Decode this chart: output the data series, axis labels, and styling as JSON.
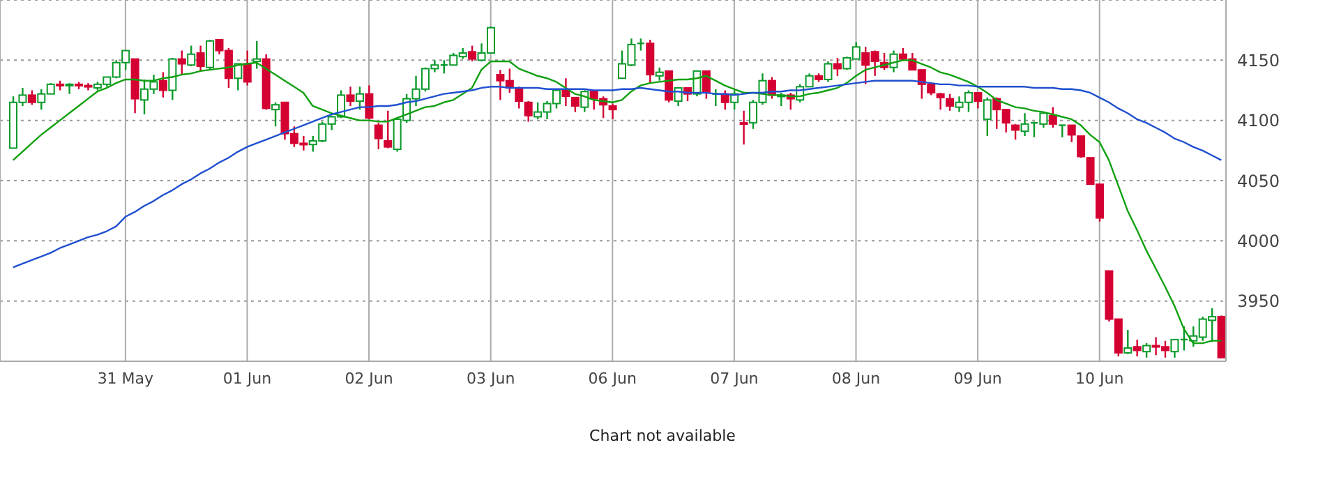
{
  "chart_data": {
    "type": "candlestick",
    "categories": [
      null,
      null,
      null,
      null,
      null,
      null,
      null,
      null,
      null,
      null,
      null,
      null,
      "31 May",
      null,
      null,
      null,
      null,
      null,
      null,
      null,
      null,
      null,
      null,
      null,
      null,
      "01 Jun",
      null,
      null,
      null,
      null,
      null,
      null,
      null,
      null,
      null,
      null,
      null,
      null,
      "02 Jun",
      null,
      null,
      null,
      null,
      null,
      null,
      null,
      null,
      null,
      null,
      null,
      null,
      "03 Jun",
      null,
      null,
      null,
      null,
      null,
      null,
      null,
      null,
      null,
      null,
      null,
      null,
      "06 Jun",
      null,
      null,
      null,
      null,
      null,
      null,
      null,
      null,
      null,
      null,
      null,
      null,
      "07 Jun",
      null,
      null,
      null,
      null,
      null,
      null,
      null,
      null,
      null,
      null,
      null,
      null,
      "08 Jun",
      null,
      null,
      null,
      null,
      null,
      null,
      null,
      null,
      null,
      null,
      null,
      null,
      "09 Jun",
      null,
      null,
      null,
      null,
      null,
      null,
      null,
      null,
      null,
      null,
      null,
      null,
      "10 Jun",
      null,
      null,
      null,
      null,
      null,
      null,
      null,
      null,
      null,
      null,
      null,
      null,
      null
    ],
    "ohlc": [
      [
        4077,
        4120,
        4077,
        4115
      ],
      [
        4115,
        4127,
        4112,
        4121
      ],
      [
        4121,
        4125,
        4113,
        4115
      ],
      [
        4115,
        4126,
        4109,
        4122
      ],
      [
        4122,
        4131,
        4122,
        4130
      ],
      [
        4130,
        4133,
        4125,
        4129
      ],
      [
        4129,
        4131,
        4122,
        4130
      ],
      [
        4130,
        4132,
        4126,
        4129
      ],
      [
        4129,
        4131,
        4125,
        4128
      ],
      [
        4127,
        4132,
        4125,
        4130
      ],
      [
        4130,
        4136,
        4128,
        4136
      ],
      [
        4136,
        4150,
        4135,
        4148
      ],
      [
        4148,
        4158,
        4142,
        4158
      ],
      [
        4151,
        4151,
        4106,
        4118
      ],
      [
        4117,
        4134,
        4105,
        4126
      ],
      [
        4126,
        4138,
        4122,
        4132
      ],
      [
        4133,
        4140,
        4119,
        4125
      ],
      [
        4125,
        4152,
        4117,
        4151
      ],
      [
        4151,
        4158,
        4138,
        4147
      ],
      [
        4146,
        4162,
        4145,
        4155
      ],
      [
        4156,
        4162,
        4141,
        4145
      ],
      [
        4144,
        4167,
        4142,
        4166
      ],
      [
        4167,
        4167,
        4155,
        4158
      ],
      [
        4158,
        4160,
        4127,
        4135
      ],
      [
        4135,
        4147,
        4125,
        4147
      ],
      [
        4147,
        4158,
        4129,
        4132
      ],
      [
        4149,
        4166,
        4143,
        4151
      ],
      [
        4151,
        4155,
        4109,
        4110
      ],
      [
        4109,
        4115,
        4095,
        4113
      ],
      [
        4115,
        4115,
        4084,
        4089
      ],
      [
        4089,
        4095,
        4078,
        4081
      ],
      [
        4081,
        4087,
        4075,
        4080
      ],
      [
        4080,
        4087,
        4074,
        4083
      ],
      [
        4083,
        4099,
        4082,
        4097
      ],
      [
        4097,
        4104,
        4092,
        4103
      ],
      [
        4103,
        4125,
        4102,
        4121
      ],
      [
        4121,
        4128,
        4112,
        4116
      ],
      [
        4116,
        4128,
        4109,
        4122
      ],
      [
        4122,
        4129,
        4101,
        4102
      ],
      [
        4096,
        4098,
        4076,
        4085
      ],
      [
        4083,
        4108,
        4077,
        4078
      ],
      [
        4076,
        4102,
        4074,
        4101
      ],
      [
        4100,
        4122,
        4098,
        4118
      ],
      [
        4118,
        4137,
        4112,
        4126
      ],
      [
        4126,
        4144,
        4124,
        4143
      ],
      [
        4143,
        4150,
        4140,
        4146
      ],
      [
        4146,
        4150,
        4139,
        4146
      ],
      [
        4146,
        4156,
        4146,
        4154
      ],
      [
        4153,
        4160,
        4151,
        4156
      ],
      [
        4157,
        4162,
        4149,
        4151
      ],
      [
        4150,
        4164,
        4149,
        4156
      ],
      [
        4156,
        4178,
        4156,
        4177
      ],
      [
        4138,
        4142,
        4117,
        4133
      ],
      [
        4133,
        4143,
        4123,
        4127
      ],
      [
        4126,
        4128,
        4110,
        4116
      ],
      [
        4115,
        4116,
        4099,
        4104
      ],
      [
        4103,
        4115,
        4101,
        4107
      ],
      [
        4107,
        4116,
        4101,
        4114
      ],
      [
        4114,
        4126,
        4110,
        4125
      ],
      [
        4125,
        4135,
        4112,
        4120
      ],
      [
        4119,
        4119,
        4107,
        4112
      ],
      [
        4111,
        4125,
        4107,
        4124
      ],
      [
        4124,
        4125,
        4109,
        4118
      ],
      [
        4118,
        4120,
        4102,
        4113
      ],
      [
        4112,
        4114,
        4101,
        4109
      ],
      [
        4135,
        4158,
        4135,
        4147
      ],
      [
        4146,
        4168,
        4145,
        4163
      ],
      [
        4164,
        4168,
        4158,
        4164
      ],
      [
        4164,
        4167,
        4131,
        4138
      ],
      [
        4137,
        4144,
        4133,
        4140
      ],
      [
        4141,
        4141,
        4115,
        4117
      ],
      [
        4116,
        4127,
        4112,
        4127
      ],
      [
        4127,
        4127,
        4116,
        4122
      ],
      [
        4122,
        4141,
        4120,
        4141
      ],
      [
        4141,
        4141,
        4118,
        4123
      ],
      [
        4122,
        4126,
        4112,
        4122
      ],
      [
        4122,
        4125,
        4109,
        4115
      ],
      [
        4115,
        4125,
        4109,
        4122
      ],
      [
        4098,
        4108,
        4080,
        4097
      ],
      [
        4098,
        4117,
        4093,
        4115
      ],
      [
        4115,
        4139,
        4113,
        4133
      ],
      [
        4133,
        4136,
        4118,
        4121
      ],
      [
        4120,
        4123,
        4112,
        4121
      ],
      [
        4121,
        4123,
        4109,
        4118
      ],
      [
        4117,
        4130,
        4115,
        4128
      ],
      [
        4128,
        4139,
        4128,
        4137
      ],
      [
        4137,
        4139,
        4132,
        4134
      ],
      [
        4134,
        4149,
        4132,
        4147
      ],
      [
        4147,
        4152,
        4137,
        4143
      ],
      [
        4143,
        4153,
        4142,
        4152
      ],
      [
        4151,
        4165,
        4151,
        4161
      ],
      [
        4156,
        4161,
        4130,
        4146
      ],
      [
        4157,
        4158,
        4137,
        4149
      ],
      [
        4148,
        4156,
        4142,
        4144
      ],
      [
        4144,
        4158,
        4140,
        4155
      ],
      [
        4155,
        4160,
        4150,
        4151
      ],
      [
        4151,
        4156,
        4142,
        4142
      ],
      [
        4142,
        4142,
        4118,
        4130
      ],
      [
        4130,
        4130,
        4121,
        4123
      ],
      [
        4122,
        4123,
        4109,
        4119
      ],
      [
        4118,
        4122,
        4108,
        4112
      ],
      [
        4111,
        4120,
        4107,
        4115
      ],
      [
        4115,
        4125,
        4107,
        4123
      ],
      [
        4123,
        4123,
        4110,
        4116
      ],
      [
        4101,
        4119,
        4087,
        4117
      ],
      [
        4118,
        4119,
        4093,
        4109
      ],
      [
        4109,
        4109,
        4090,
        4098
      ],
      [
        4096,
        4097,
        4084,
        4092
      ],
      [
        4091,
        4106,
        4087,
        4097
      ],
      [
        4098,
        4099,
        4086,
        4098
      ],
      [
        4097,
        4107,
        4094,
        4106
      ],
      [
        4104,
        4111,
        4094,
        4097
      ],
      [
        4096,
        4096,
        4086,
        4096
      ],
      [
        4096,
        4096,
        4082,
        4088
      ],
      [
        4087,
        4087,
        4069,
        4070
      ],
      [
        4069,
        4069,
        4047,
        4047
      ],
      [
        4047,
        4047,
        4016,
        4019
      ],
      [
        3975,
        3975,
        3933,
        3935
      ],
      [
        3935,
        3935,
        3904,
        3907
      ],
      [
        3907,
        3926,
        3906,
        3911
      ],
      [
        3912,
        3918,
        3904,
        3909
      ],
      [
        3908,
        3915,
        3903,
        3913
      ],
      [
        3913,
        3920,
        3905,
        3912
      ],
      [
        3912,
        3917,
        3903,
        3909
      ],
      [
        3908,
        3918,
        3903,
        3918
      ],
      [
        3918,
        3929,
        3909,
        3918
      ],
      [
        3917,
        3929,
        3912,
        3921
      ],
      [
        3920,
        3937,
        3917,
        3935
      ],
      [
        3934,
        3944,
        3916,
        3937
      ],
      [
        3937,
        3938,
        3903,
        3903
      ]
    ],
    "colors": [
      "#0a9a2a",
      "#0a9a2a",
      "#d40032",
      "#0a9a2a",
      "#0a9a2a",
      "#d40032",
      "#0a9a2a",
      "#d40032",
      "#d40032",
      "#0a9a2a",
      "#0a9a2a",
      "#0a9a2a",
      "#0a9a2a",
      "#d40032",
      "#0a9a2a",
      "#0a9a2a",
      "#d40032",
      "#0a9a2a",
      "#d40032",
      "#0a9a2a",
      "#d40032",
      "#0a9a2a",
      "#d40032",
      "#d40032",
      "#0a9a2a",
      "#d40032",
      "#0a9a2a",
      "#d40032",
      "#0a9a2a",
      "#d40032",
      "#d40032",
      "#d40032",
      "#0a9a2a",
      "#0a9a2a",
      "#0a9a2a",
      "#0a9a2a",
      "#d40032",
      "#0a9a2a",
      "#d40032",
      "#d40032",
      "#d40032",
      "#0a9a2a",
      "#0a9a2a",
      "#0a9a2a",
      "#0a9a2a",
      "#0a9a2a",
      "#0a9a2a",
      "#0a9a2a",
      "#0a9a2a",
      "#d40032",
      "#0a9a2a",
      "#0a9a2a",
      "#d40032",
      "#d40032",
      "#d40032",
      "#d40032",
      "#0a9a2a",
      "#0a9a2a",
      "#0a9a2a",
      "#d40032",
      "#d40032",
      "#0a9a2a",
      "#d40032",
      "#d40032",
      "#d40032",
      "#0a9a2a",
      "#0a9a2a",
      "#0a9a2a",
      "#d40032",
      "#0a9a2a",
      "#d40032",
      "#0a9a2a",
      "#d40032",
      "#0a9a2a",
      "#d40032",
      "#0a9a2a",
      "#d40032",
      "#0a9a2a",
      "#d40032",
      "#0a9a2a",
      "#0a9a2a",
      "#d40032",
      "#0a9a2a",
      "#d40032",
      "#0a9a2a",
      "#0a9a2a",
      "#d40032",
      "#0a9a2a",
      "#d40032",
      "#0a9a2a",
      "#0a9a2a",
      "#d40032",
      "#d40032",
      "#d40032",
      "#0a9a2a",
      "#d40032",
      "#d40032",
      "#d40032",
      "#d40032",
      "#d40032",
      "#d40032",
      "#0a9a2a",
      "#0a9a2a",
      "#d40032",
      "#0a9a2a",
      "#d40032",
      "#d40032",
      "#d40032",
      "#0a9a2a",
      "#0a9a2a",
      "#0a9a2a",
      "#d40032",
      "#0a9a2a",
      "#d40032",
      "#d40032",
      "#d40032",
      "#d40032",
      "#d40032",
      "#d40032",
      "#0a9a2a",
      "#d40032",
      "#0a9a2a",
      "#d40032",
      "#d40032",
      "#0a9a2a",
      "#0a9a2a",
      "#0a9a2a",
      "#0a9a2a",
      "#0a9a2a",
      "#d40032"
    ],
    "series": [
      {
        "type": "line",
        "color": "#10a010",
        "values": [
          4067,
          4074,
          4081,
          4088,
          4094,
          4100,
          4106,
          4112,
          4118,
          4124,
          4127,
          4131,
          4134,
          4134,
          4133,
          4133,
          4135,
          4136,
          4138,
          4139,
          4141,
          4142,
          4143,
          4144,
          4146,
          4147,
          4148,
          4143,
          4138,
          4133,
          4128,
          4123,
          4112,
          4109,
          4106,
          4104,
          4102,
          4100,
          4100,
          4099,
          4099,
          4102,
          4105,
          4108,
          4111,
          4112,
          4115,
          4117,
          4122,
          4127,
          4142,
          4149,
          4149,
          4149,
          4143,
          4140,
          4137,
          4135,
          4132,
          4127,
          4122,
          4120,
          4117,
          4116,
          4115,
          4117,
          4124,
          4129,
          4131,
          4132,
          4133,
          4134,
          4134,
          4135,
          4137,
          4133,
          4129,
          4126,
          4123,
          4123,
          4122,
          4121,
          4121,
          4120,
          4120,
          4122,
          4123,
          4125,
          4127,
          4131,
          4137,
          4142,
          4144,
          4146,
          4148,
          4150,
          4150,
          4147,
          4144,
          4140,
          4138,
          4135,
          4132,
          4128,
          4123,
          4117,
          4114,
          4111,
          4110,
          4108,
          4107,
          4105,
          4103,
          4101,
          4096,
          4088,
          4082,
          4067,
          4046,
          4025,
          4009,
          3992,
          3977,
          3962,
          3946,
          3927,
          3915,
          3915,
          3917,
          3917
        ]
      },
      {
        "type": "line",
        "color": "#2050d0",
        "values": [
          3978,
          3981,
          3984,
          3987,
          3990,
          3994,
          3997,
          4000,
          4003,
          4005,
          4008,
          4012,
          4020,
          4024,
          4029,
          4033,
          4038,
          4042,
          4047,
          4051,
          4056,
          4060,
          4065,
          4069,
          4074,
          4078,
          4081,
          4084,
          4087,
          4090,
          4093,
          4096,
          4099,
          4102,
          4105,
          4107,
          4109,
          4111,
          4111,
          4112,
          4112,
          4113,
          4115,
          4116,
          4118,
          4120,
          4122,
          4123,
          4124,
          4125,
          4127,
          4128,
          4128,
          4127,
          4127,
          4127,
          4127,
          4126,
          4126,
          4126,
          4126,
          4126,
          4125,
          4125,
          4125,
          4126,
          4126,
          4127,
          4126,
          4125,
          4124,
          4124,
          4123,
          4123,
          4123,
          4122,
          4122,
          4121,
          4122,
          4123,
          4123,
          4124,
          4124,
          4125,
          4125,
          4126,
          4127,
          4128,
          4129,
          4130,
          4131,
          4132,
          4133,
          4133,
          4133,
          4133,
          4133,
          4132,
          4131,
          4130,
          4130,
          4129,
          4129,
          4128,
          4128,
          4128,
          4128,
          4128,
          4128,
          4127,
          4127,
          4127,
          4126,
          4126,
          4125,
          4123,
          4119,
          4115,
          4110,
          4106,
          4101,
          4098,
          4094,
          4090,
          4085,
          4082,
          4078,
          4075,
          4071,
          4067
        ]
      }
    ],
    "ylim": [
      3900,
      4200
    ],
    "yticks": [
      3950,
      4000,
      4050,
      4100,
      4150
    ],
    "grid": true,
    "annotations": [
      "Chart not available"
    ]
  }
}
